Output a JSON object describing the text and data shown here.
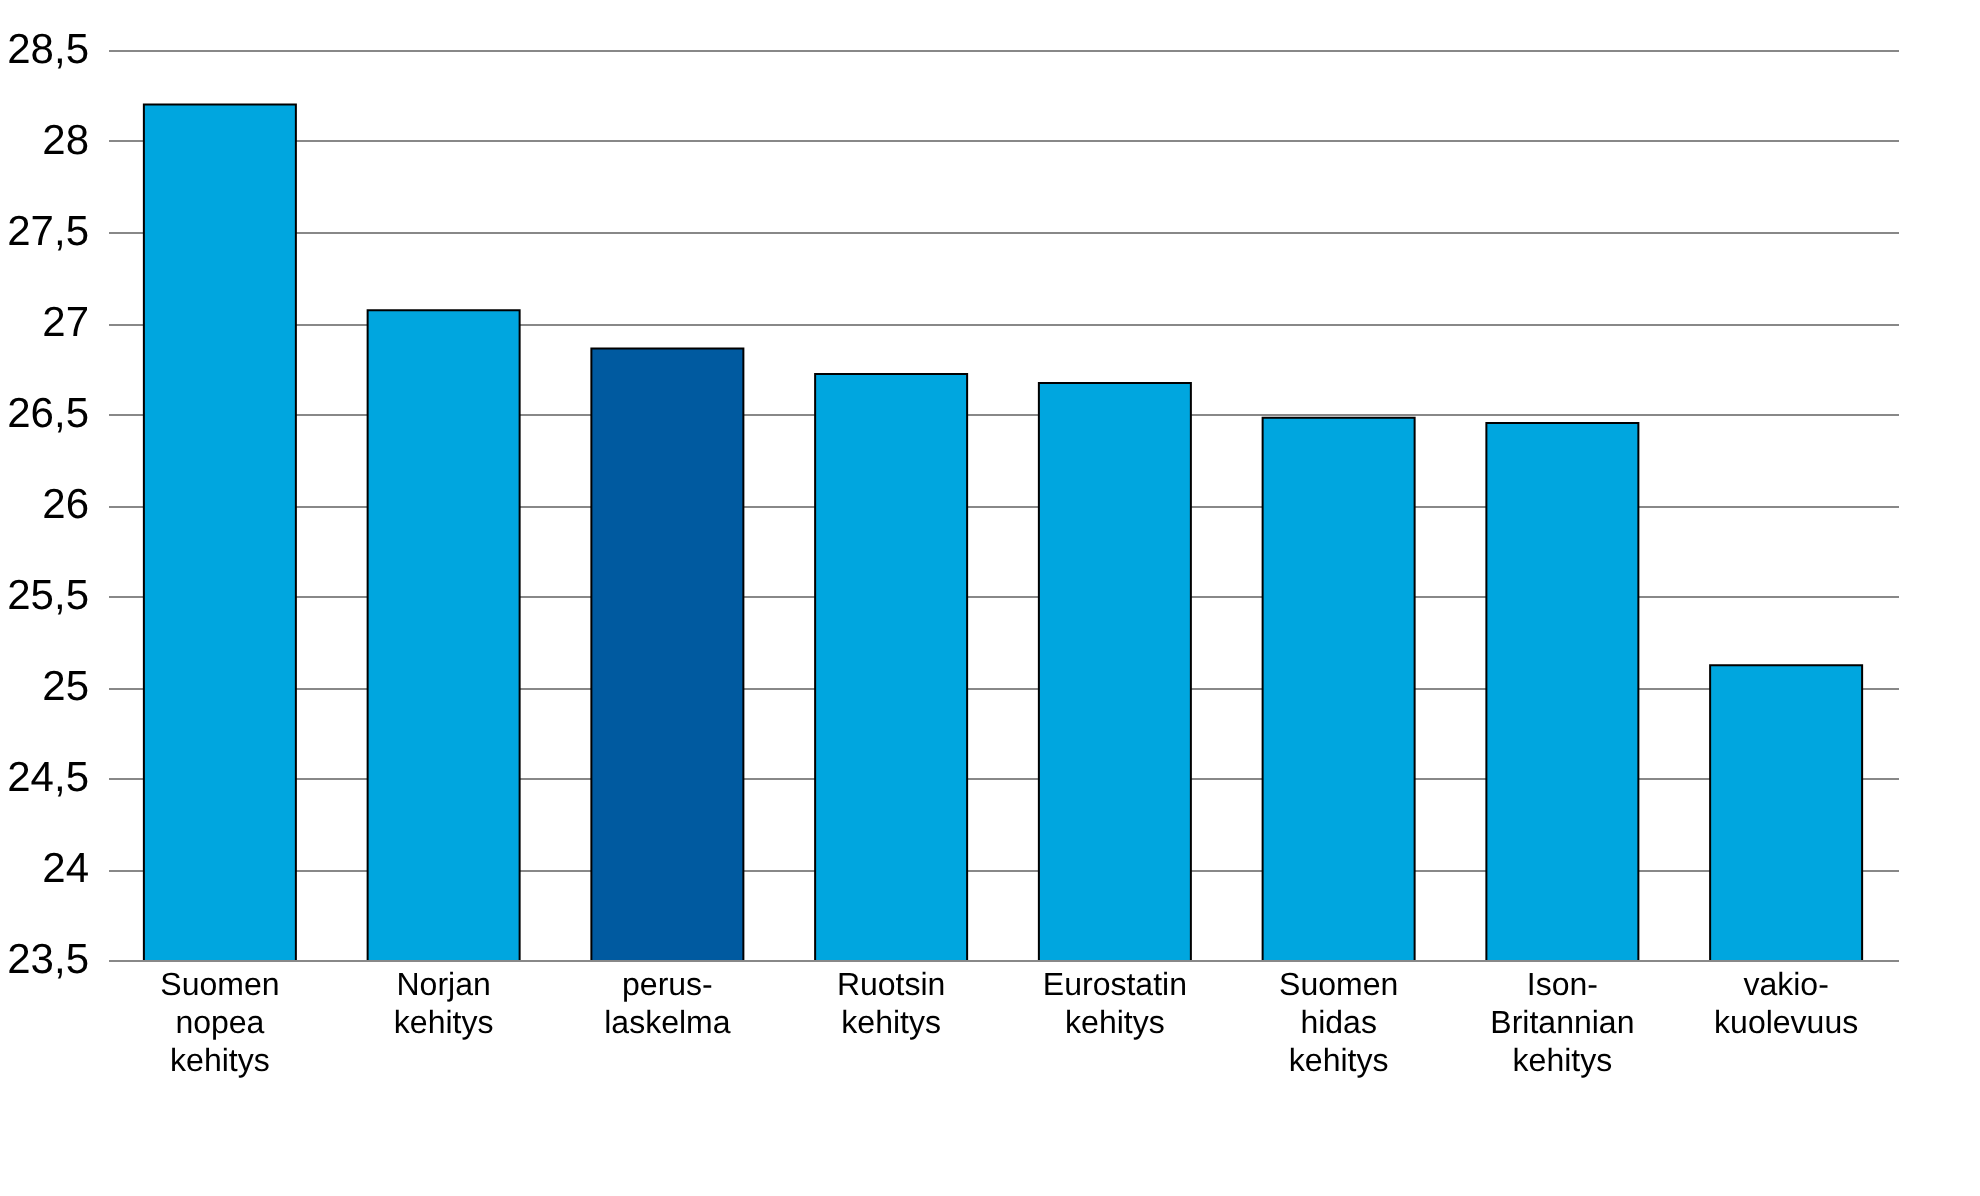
{
  "chart_data": {
    "type": "bar",
    "categories": [
      "Suomen\nnopea\nkehitys",
      "Norjan\nkehitys",
      "perus-\nlaskelma",
      "Ruotsin\nkehitys",
      "Eurostatin\nkehitys",
      "Suomen\nhidas\nkehitys",
      "Ison-\nBritannian\nkehitys",
      "vakio-\nkuolevuus"
    ],
    "values": [
      28.2,
      27.07,
      26.86,
      26.72,
      26.67,
      26.48,
      26.45,
      25.12
    ],
    "colors": [
      "#00a6df",
      "#00a6df",
      "#005aa0",
      "#00a6df",
      "#00a6df",
      "#00a6df",
      "#00a6df",
      "#00a6df"
    ],
    "ylim": [
      23.5,
      28.5
    ],
    "yticks": [
      {
        "value": 23.5,
        "label": "23,5"
      },
      24,
      {
        "value": 24.5,
        "label": "24,5"
      },
      25,
      {
        "value": 25.5,
        "label": "25,5"
      },
      26,
      {
        "value": 26.5,
        "label": "26,5"
      },
      27,
      {
        "value": 27.5,
        "label": "27,5"
      },
      28,
      {
        "value": 28.5,
        "label": "28,5"
      }
    ],
    "grid": "y"
  }
}
